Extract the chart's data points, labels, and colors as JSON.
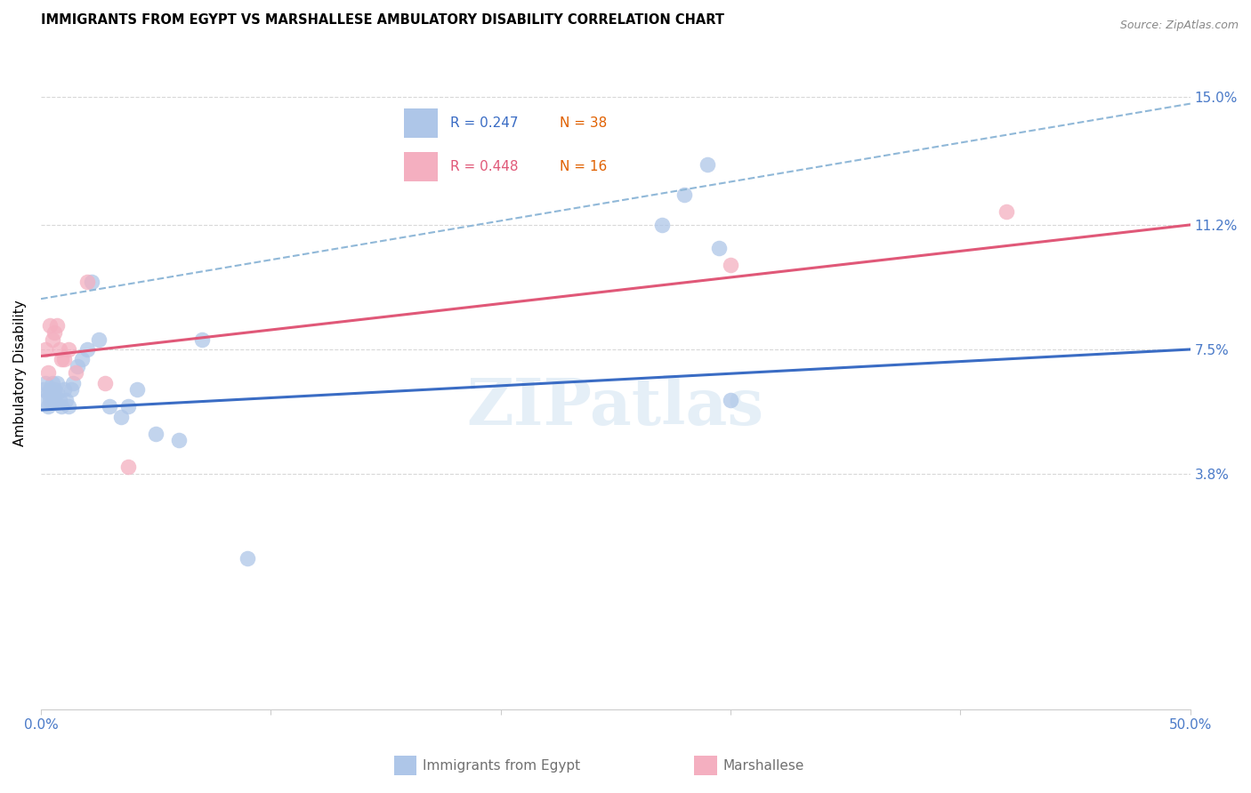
{
  "title": "IMMIGRANTS FROM EGYPT VS MARSHALLESE AMBULATORY DISABILITY CORRELATION CHART",
  "source": "Source: ZipAtlas.com",
  "ylabel": "Ambulatory Disability",
  "xlim": [
    0.0,
    0.5
  ],
  "ylim": [
    -0.032,
    0.168
  ],
  "ytick_vals": [
    0.0,
    0.038,
    0.075,
    0.112,
    0.15
  ],
  "ytick_labels": [
    "",
    "3.8%",
    "7.5%",
    "11.2%",
    "15.0%"
  ],
  "blue_scatter_color": "#aec6e8",
  "pink_scatter_color": "#f4afc0",
  "blue_line_color": "#3a6cc4",
  "pink_line_color": "#e05878",
  "blue_dash_color": "#90b8d8",
  "axis_color": "#4a7ac8",
  "n_color": "#e06000",
  "watermark_color": "#cce0f0",
  "egypt_x": [
    0.001,
    0.002,
    0.002,
    0.003,
    0.003,
    0.004,
    0.004,
    0.005,
    0.005,
    0.006,
    0.006,
    0.007,
    0.007,
    0.008,
    0.009,
    0.01,
    0.011,
    0.012,
    0.013,
    0.014,
    0.016,
    0.018,
    0.02,
    0.022,
    0.025,
    0.03,
    0.035,
    0.038,
    0.042,
    0.05,
    0.06,
    0.07,
    0.09,
    0.27,
    0.28,
    0.29,
    0.295,
    0.3
  ],
  "egypt_y": [
    0.063,
    0.06,
    0.065,
    0.058,
    0.062,
    0.06,
    0.063,
    0.062,
    0.065,
    0.06,
    0.063,
    0.062,
    0.065,
    0.06,
    0.058,
    0.063,
    0.06,
    0.058,
    0.063,
    0.065,
    0.07,
    0.072,
    0.075,
    0.095,
    0.078,
    0.058,
    0.055,
    0.058,
    0.063,
    0.05,
    0.048,
    0.078,
    0.013,
    0.112,
    0.121,
    0.13,
    0.105,
    0.06
  ],
  "marshallese_x": [
    0.002,
    0.003,
    0.004,
    0.005,
    0.006,
    0.007,
    0.008,
    0.009,
    0.01,
    0.012,
    0.015,
    0.02,
    0.028,
    0.038,
    0.3,
    0.42
  ],
  "marshallese_y": [
    0.075,
    0.068,
    0.082,
    0.078,
    0.08,
    0.082,
    0.075,
    0.072,
    0.072,
    0.075,
    0.068,
    0.095,
    0.065,
    0.04,
    0.1,
    0.116
  ],
  "blue_line_x0": 0.0,
  "blue_line_y0": 0.057,
  "blue_line_x1": 0.5,
  "blue_line_y1": 0.075,
  "pink_line_x0": 0.0,
  "pink_line_y0": 0.073,
  "pink_line_x1": 0.5,
  "pink_line_y1": 0.112,
  "dash_line_x0": 0.0,
  "dash_line_y0": 0.09,
  "dash_line_x1": 0.5,
  "dash_line_y1": 0.148
}
